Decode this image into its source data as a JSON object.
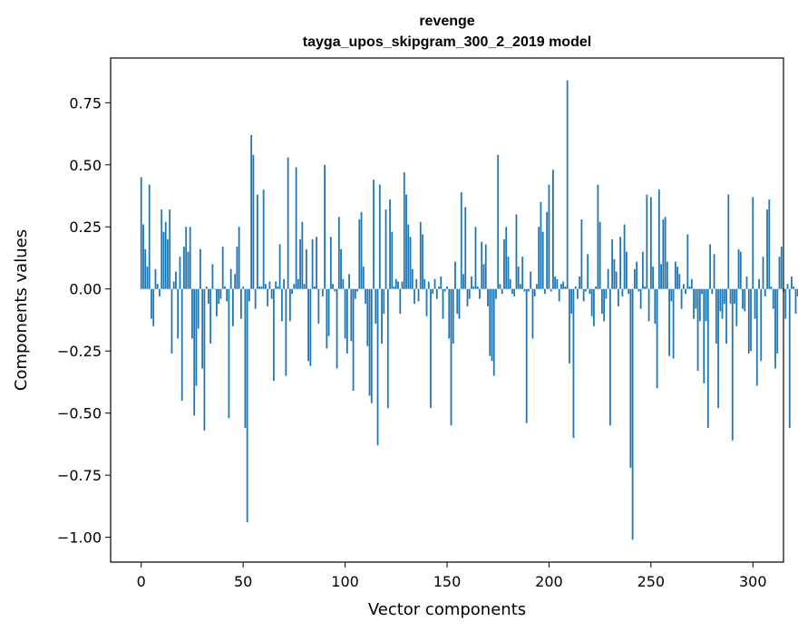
{
  "chart_data": {
    "type": "bar",
    "title_line1": "revenge",
    "title_line2": "tayga_upos_skipgram_300_2_2019 model",
    "xlabel": "Vector components",
    "ylabel": "Components values",
    "xlim": [
      -15,
      315
    ],
    "ylim": [
      -1.1,
      0.93
    ],
    "xticks": [
      0,
      50,
      100,
      150,
      200,
      250,
      300
    ],
    "xtick_labels": [
      "0",
      "50",
      "100",
      "150",
      "200",
      "250",
      "300"
    ],
    "yticks": [
      0.75,
      0.5,
      0.25,
      0.0,
      -0.25,
      -0.5,
      -0.75,
      -1.0
    ],
    "ytick_labels": [
      "0.75",
      "0.50",
      "0.25",
      "0.00",
      "−0.25",
      "−0.50",
      "−0.75",
      "−1.00"
    ],
    "bar_color": "#1f77b4",
    "grid": false,
    "values": [
      0.45,
      0.26,
      0.16,
      0.09,
      0.42,
      -0.12,
      -0.15,
      0.08,
      0.02,
      -0.03,
      0.32,
      0.23,
      0.27,
      0.2,
      0.32,
      -0.26,
      0.03,
      0.07,
      -0.2,
      0.13,
      -0.45,
      0.17,
      0.25,
      0.15,
      0.25,
      -0.2,
      -0.51,
      -0.39,
      -0.16,
      0.16,
      -0.32,
      -0.57,
      0.01,
      -0.06,
      -0.22,
      0.1,
      0.0,
      -0.11,
      -0.06,
      -0.04,
      0.17,
      0.01,
      -0.05,
      -0.52,
      0.08,
      -0.15,
      0.06,
      0.17,
      0.25,
      -0.12,
      0.01,
      -0.56,
      -0.94,
      -0.05,
      0.62,
      0.54,
      -0.08,
      0.38,
      0.01,
      0.01,
      0.4,
      0.02,
      -0.07,
      0.03,
      -0.04,
      -0.37,
      0.03,
      0.01,
      0.18,
      -0.13,
      0.04,
      -0.35,
      0.53,
      -0.13,
      -0.02,
      0.02,
      0.49,
      0.04,
      0.2,
      0.27,
      0.02,
      0.16,
      -0.29,
      -0.31,
      0.2,
      0.01,
      0.21,
      -0.14,
      0.0,
      -0.03,
      0.5,
      -0.24,
      -0.19,
      0.21,
      0.02,
      -0.01,
      -0.32,
      0.29,
      0.16,
      0.04,
      -0.2,
      -0.26,
      0.06,
      -0.21,
      -0.41,
      -0.04,
      -0.01,
      0.28,
      0.31,
      0.09,
      -0.06,
      -0.23,
      -0.43,
      -0.46,
      0.44,
      -0.14,
      -0.63,
      0.42,
      -0.22,
      -0.1,
      0.32,
      -0.48,
      0.36,
      0.23,
      0.01,
      0.04,
      0.03,
      -0.1,
      0.03,
      0.47,
      0.38,
      0.26,
      0.21,
      0.08,
      -0.06,
      0.04,
      -0.05,
      0.27,
      0.22,
      0.04,
      -0.11,
      0.03,
      -0.48,
      -0.02,
      0.04,
      -0.04,
      0.01,
      0.05,
      -0.12,
      -0.01,
      0.01,
      -0.2,
      -0.55,
      -0.22,
      0.11,
      -0.1,
      -0.12,
      0.39,
      0.06,
      0.33,
      -0.07,
      -0.04,
      0.05,
      0.01,
      0.25,
      0.01,
      -0.04,
      0.19,
      0.1,
      0.18,
      -0.07,
      -0.27,
      -0.29,
      -0.35,
      -0.04,
      0.54,
      0.02,
      -0.02,
      0.2,
      0.25,
      0.13,
      0.04,
      -0.02,
      -0.03,
      0.3,
      0.09,
      0.02,
      0.13,
      -0.01,
      -0.54,
      -0.01,
      0.07,
      -0.2,
      -0.03,
      0.02,
      0.25,
      0.35,
      0.23,
      -0.02,
      0.31,
      0.42,
      -0.01,
      0.48,
      0.05,
      0.04,
      -0.05,
      0.02,
      0.03,
      0.01,
      0.84,
      -0.3,
      -0.1,
      -0.6,
      0.01,
      -0.04,
      0.05,
      0.28,
      -0.05,
      -0.01,
      0.14,
      -0.02,
      -0.11,
      -0.15,
      0.01,
      0.42,
      0.27,
      -0.1,
      -0.13,
      -0.04,
      0.08,
      -0.55,
      0.2,
      0.12,
      0.07,
      -0.07,
      0.21,
      -0.03,
      0.26,
      0.15,
      -0.02,
      -0.72,
      -1.01,
      0.08,
      0.11,
      -0.01,
      -0.08,
      0.15,
      0.01,
      0.38,
      -0.13,
      0.37,
      0.09,
      -0.14,
      -0.4,
      0.4,
      0.1,
      0.28,
      0.29,
      0.11,
      -0.27,
      -0.05,
      -0.28,
      0.11,
      0.09,
      0.06,
      -0.08,
      0.02,
      -0.02,
      0.22,
      0.01,
      0.04,
      -0.12,
      -0.08,
      -0.33,
      -0.13,
      -0.02,
      -0.38,
      -0.13,
      -0.56,
      0.18,
      -0.02,
      0.14,
      -0.22,
      -0.48,
      -0.09,
      -0.12,
      -0.06,
      -0.22,
      0.38,
      -0.06,
      -0.61,
      -0.06,
      -0.15,
      0.16,
      0.15,
      -0.08,
      -0.09,
      0.05,
      -0.26,
      -0.25,
      0.37,
      -0.12,
      -0.39,
      0.04,
      -0.29,
      0.13,
      -0.03,
      0.32,
      0.36,
      0.01,
      -0.08,
      -0.32,
      -0.26,
      0.13,
      0.17,
      -0.01,
      -0.12,
      0.02,
      -0.56,
      0.05,
      0.01,
      -0.1,
      -0.03,
      0.06,
      0.0,
      -0.01,
      0.03,
      -0.01
    ]
  }
}
